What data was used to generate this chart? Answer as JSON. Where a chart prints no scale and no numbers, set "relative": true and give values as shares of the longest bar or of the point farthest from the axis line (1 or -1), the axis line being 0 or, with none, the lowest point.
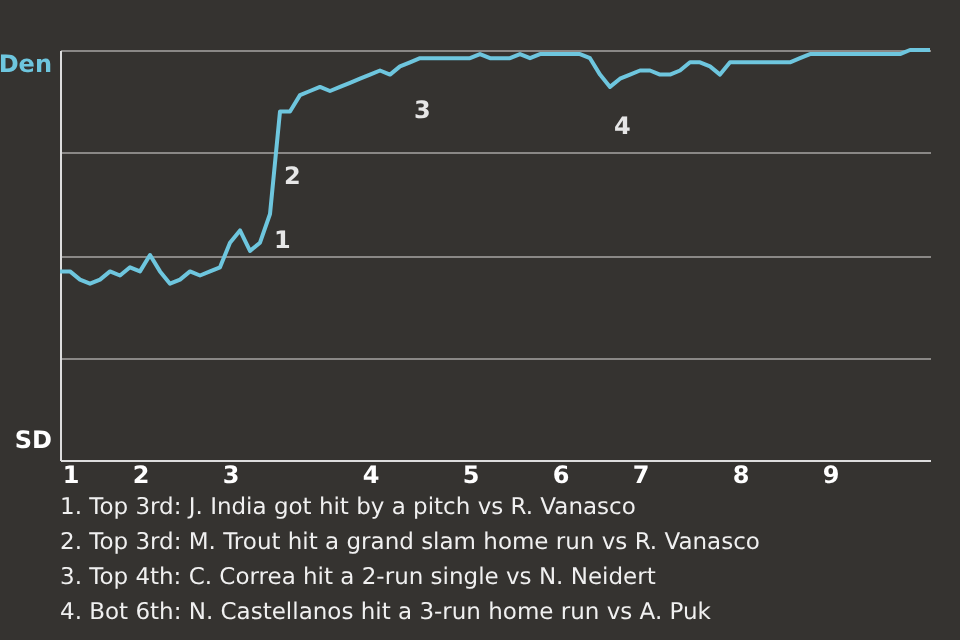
{
  "chart_data": {
    "type": "line",
    "relative": true,
    "categories": [
      null,
      "1",
      null,
      null,
      null,
      null,
      null,
      null,
      "2",
      null,
      null,
      null,
      null,
      null,
      null,
      null,
      null,
      "3",
      null,
      null,
      null,
      null,
      null,
      null,
      null,
      null,
      null,
      null,
      null,
      null,
      null,
      "4",
      null,
      null,
      null,
      null,
      null,
      null,
      null,
      null,
      null,
      "5",
      null,
      null,
      null,
      null,
      null,
      null,
      null,
      null,
      "6",
      null,
      null,
      null,
      null,
      null,
      null,
      null,
      "7",
      null,
      null,
      null,
      null,
      null,
      null,
      null,
      null,
      null,
      "8",
      null,
      null,
      null,
      null,
      null,
      null,
      null,
      null,
      "9",
      null,
      null,
      null,
      null,
      null,
      null,
      null,
      null,
      null,
      null
    ],
    "grid": "y",
    "marker": "none",
    "line_style": "solid",
    "series": [
      {
        "color": "#6ec6de",
        "values": [
          0.46,
          0.46,
          0.44,
          0.43,
          0.44,
          0.46,
          0.45,
          0.47,
          0.46,
          0.5,
          0.46,
          0.43,
          0.44,
          0.46,
          0.45,
          0.46,
          0.47,
          0.53,
          0.56,
          0.51,
          0.53,
          0.6,
          0.85,
          0.85,
          0.89,
          0.9,
          0.91,
          0.9,
          0.91,
          0.92,
          0.93,
          0.94,
          0.95,
          0.94,
          0.96,
          0.97,
          0.98,
          0.98,
          0.98,
          0.98,
          0.98,
          0.98,
          0.99,
          0.98,
          0.98,
          0.98,
          0.99,
          0.98,
          0.99,
          0.99,
          0.99,
          0.99,
          0.99,
          0.98,
          0.94,
          0.91,
          0.93,
          0.94,
          0.95,
          0.95,
          0.94,
          0.94,
          0.95,
          0.97,
          0.97,
          0.96,
          0.94,
          0.97,
          0.97,
          0.97,
          0.97,
          0.97,
          0.97,
          0.97,
          0.98,
          0.99,
          0.99,
          0.99,
          0.99,
          0.99,
          0.99,
          0.99,
          0.99,
          0.99,
          0.99,
          1.0,
          1.0,
          1.0
        ]
      }
    ],
    "annotations": [
      "1",
      "2",
      "3",
      "4",
      "Den",
      "SD",
      "1. Top 3rd: J. India got hit by a pitch vs R. Vanasco",
      "2. Top 3rd: M. Trout hit a grand slam home run vs R. Vanasco",
      "3. Top 4th: C. Correa hit a 2-run single vs N. Neidert",
      "4. Bot 6th: N. Castellanos hit a 3-run home run vs A. Puk"
    ]
  }
}
